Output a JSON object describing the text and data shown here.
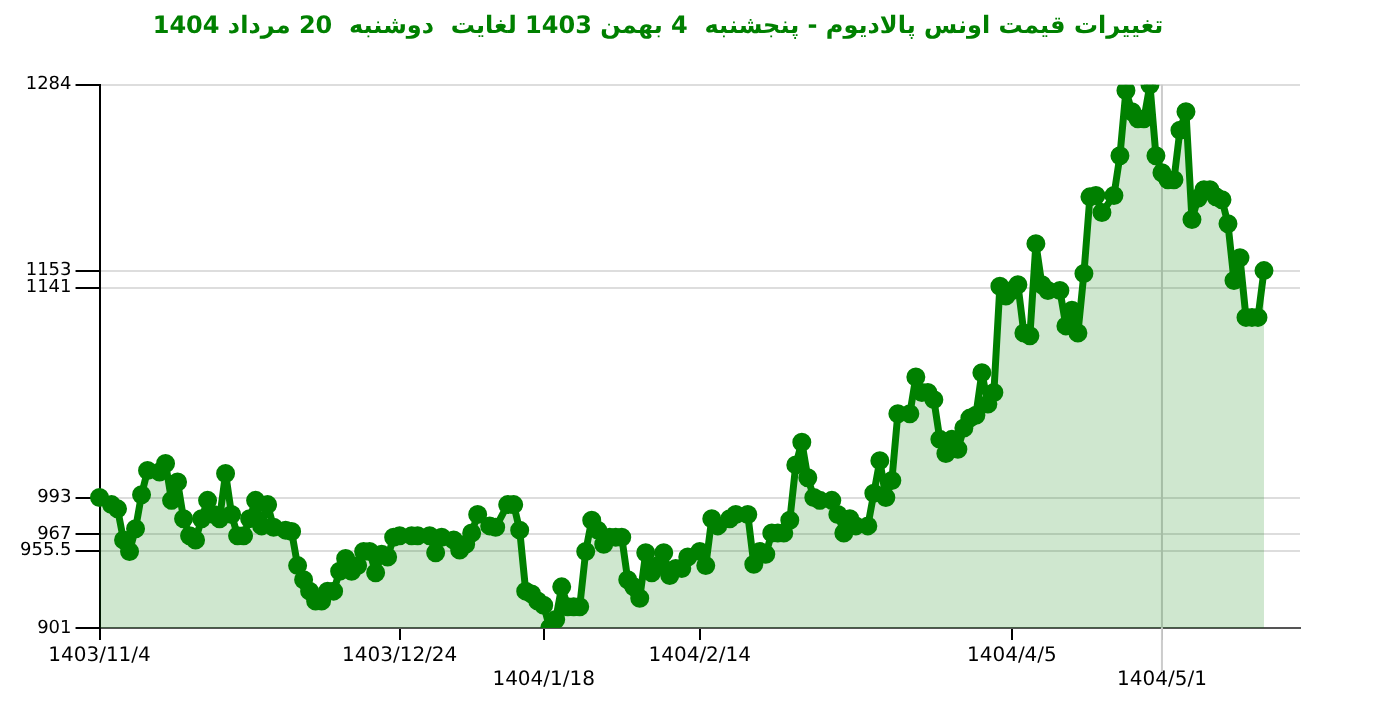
{
  "chart_data": {
    "type": "area",
    "title": "تغییرات قیمت اونس پالادیوم - پنجشنبه  4 بهمن 1403 لغایت  دوشنبه  20 مرداد 1404",
    "categories": [
      "1403/11/4",
      null,
      null,
      null,
      null,
      null,
      null,
      null,
      null,
      null,
      null,
      null,
      null,
      null,
      null,
      null,
      null,
      null,
      null,
      null,
      null,
      null,
      null,
      null,
      null,
      null,
      null,
      null,
      null,
      null,
      null,
      null,
      null,
      null,
      null,
      null,
      null,
      null,
      null,
      null,
      null,
      null,
      null,
      null,
      null,
      null,
      null,
      null,
      null,
      null,
      "1403/12/24",
      null,
      null,
      null,
      null,
      null,
      null,
      null,
      null,
      null,
      null,
      null,
      null,
      null,
      null,
      null,
      null,
      null,
      null,
      null,
      null,
      null,
      null,
      null,
      "1404/1/18",
      null,
      null,
      null,
      null,
      null,
      null,
      null,
      null,
      null,
      null,
      null,
      null,
      null,
      null,
      null,
      null,
      null,
      null,
      null,
      null,
      null,
      null,
      null,
      null,
      null,
      "1404/2/14",
      null,
      null,
      null,
      null,
      null,
      null,
      null,
      null,
      null,
      null,
      null,
      null,
      null,
      null,
      null,
      null,
      null,
      null,
      null,
      null,
      null,
      null,
      null,
      null,
      null,
      null,
      null,
      null,
      null,
      null,
      null,
      null,
      null,
      null,
      null,
      null,
      null,
      null,
      null,
      null,
      null,
      null,
      null,
      null,
      null,
      null,
      null,
      null,
      null,
      null,
      null,
      "1404/4/5",
      null,
      null,
      null,
      null,
      null,
      null,
      null,
      null,
      null,
      null,
      null,
      null,
      null,
      null,
      null,
      null,
      null,
      null,
      null,
      null,
      null,
      null,
      null,
      null,
      "1404/5/1",
      null,
      null,
      null,
      null,
      null,
      null,
      null,
      null,
      null,
      null,
      null,
      null,
      null,
      null,
      null,
      null,
      null,
      null,
      null,
      null,
      null,
      null,
      null
    ],
    "series": [
      {
        "color": "#008000",
        "values": [
          993,
          null,
          988,
          985,
          963,
          955,
          971,
          995,
          1012,
          null,
          1011,
          1017,
          991,
          1004,
          978,
          966,
          963,
          978,
          991,
          981,
          978,
          1010,
          981,
          966,
          966,
          978,
          991,
          973,
          988,
          972,
          null,
          970,
          969,
          945,
          935,
          927,
          920,
          920,
          927,
          927,
          941,
          950,
          941,
          945,
          955,
          955,
          940,
          953,
          951,
          965,
          966,
          null,
          966,
          966,
          null,
          966,
          954,
          965,
          null,
          963,
          956,
          960,
          968,
          981,
          null,
          973,
          972,
          null,
          988,
          988,
          970,
          927,
          925,
          920,
          917,
          901,
          907,
          930,
          916,
          916,
          916,
          955,
          977,
          970,
          960,
          965,
          965,
          965,
          935,
          930,
          922,
          954,
          940,
          945,
          954,
          938,
          943,
          943,
          951,
          null,
          955,
          945,
          978,
          973,
          null,
          978,
          981,
          null,
          981,
          946,
          955,
          953,
          968,
          968,
          968,
          977,
          1016,
          1032,
          1007,
          993,
          991,
          null,
          991,
          981,
          968,
          978,
          973,
          null,
          973,
          996,
          1019,
          993,
          1005,
          1052,
          null,
          1052,
          1078,
          1067,
          1067,
          1062,
          1034,
          1024,
          1034,
          1027,
          1042,
          1049,
          1051,
          1081,
          1059,
          1067,
          1142,
          1135,
          1139,
          1143,
          1109,
          1107,
          1172,
          1143,
          1139,
          null,
          1139,
          1114,
          1125,
          1109,
          1151,
          1205,
          1206,
          1194,
          null,
          1206,
          1234,
          1280,
          1265,
          1260,
          1260,
          1284,
          1234,
          1222,
          1217,
          1217,
          1252,
          1265,
          1189,
          1204,
          1210,
          1210,
          1205,
          1203,
          1186,
          1146,
          1162,
          1120,
          1120,
          1120,
          1153,
          null,
          null,
          null,
          null,
          null,
          null
        ]
      }
    ],
    "ylim": [
      901,
      1284
    ],
    "yticks": [
      901,
      955.5,
      967,
      993,
      1141,
      1153,
      1284
    ],
    "ref_lines": [
      {
        "axis": "x",
        "value": "1404/5/1",
        "color": "#cccccc"
      }
    ],
    "grid": "y",
    "marker": "circle",
    "legend": false
  }
}
